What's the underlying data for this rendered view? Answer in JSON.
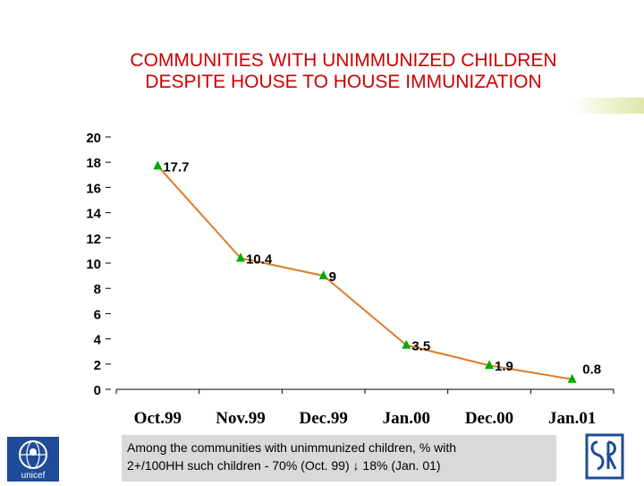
{
  "title": {
    "line1": "COMMUNITIES WITH UNIMMUNIZED CHILDREN",
    "line2": "DESPITE HOUSE TO HOUSE IMMUNIZATION"
  },
  "chart_data": {
    "type": "line",
    "title": "COMMUNITIES WITH UNIMMUNIZED CHILDREN DESPITE HOUSE TO HOUSE IMMUNIZATION",
    "categories": [
      "Oct.99",
      "Nov.99",
      "Dec.99",
      "Jan.00",
      "Dec.00",
      "Jan.01"
    ],
    "values": [
      17.7,
      10.4,
      9,
      3.5,
      1.9,
      0.8
    ],
    "data_labels": [
      "17.7",
      "10.4",
      "9",
      "3.5",
      "1.9",
      "0.8"
    ],
    "yticks": [
      0,
      2,
      4,
      6,
      8,
      10,
      12,
      14,
      16,
      18,
      20
    ],
    "ylim": [
      0,
      20
    ],
    "xlabel": "",
    "ylabel": "",
    "grid": false,
    "line_color": "#e07b2a",
    "marker_color": "#00aa00"
  },
  "note": {
    "line1": "Among the communities with unimmunized children, % with",
    "line2_before": "2+/100HH such children - 70% (Oct. 99)",
    "arrow": "↓",
    "line2_after": "18% (Jan. 01)"
  },
  "logos": {
    "left_text": "unicef"
  },
  "colors": {
    "title": "#cc0000",
    "note_bg": "#d9d9d9"
  }
}
